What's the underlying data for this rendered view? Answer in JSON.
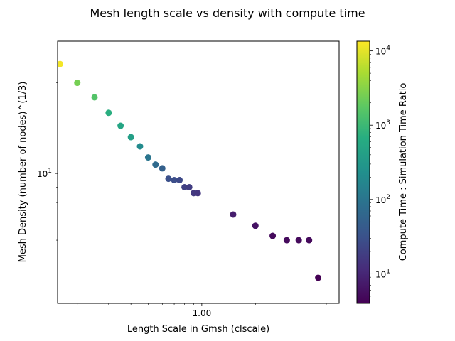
{
  "chart_data": {
    "type": "scatter",
    "title": "Mesh length scale vs density with compute time",
    "xlabel": "Length Scale in Gmsh (clscale)",
    "ylabel": "Mesh Density (number of nodes)^(1/3)",
    "x_scale": "log",
    "y_scale": "log",
    "xlim": [
      0.155,
      5.9
    ],
    "ylim": [
      3.7,
      27.5
    ],
    "x_ticks": [
      {
        "value": 1.0,
        "label": "1.00"
      }
    ],
    "y_ticks": [
      {
        "value": 10,
        "base": "10",
        "exp": "1"
      }
    ],
    "grid": false,
    "colorbar": {
      "label": "Compute Time : Simulation Time Ratio",
      "scale": "log",
      "colormap": "viridis",
      "range": [
        4,
        13500
      ],
      "ticks": [
        {
          "value": 10,
          "base": "10",
          "exp": "1"
        },
        {
          "value": 100,
          "base": "10",
          "exp": "2"
        },
        {
          "value": 1000,
          "base": "10",
          "exp": "3"
        },
        {
          "value": 10000,
          "base": "10",
          "exp": "4"
        }
      ]
    },
    "series": [
      {
        "points": [
          {
            "x": 0.16,
            "y": 23.1,
            "c": 12000
          },
          {
            "x": 0.2,
            "y": 20.0,
            "c": 2500
          },
          {
            "x": 0.25,
            "y": 17.9,
            "c": 1500
          },
          {
            "x": 0.3,
            "y": 15.9,
            "c": 700
          },
          {
            "x": 0.35,
            "y": 14.4,
            "c": 500
          },
          {
            "x": 0.4,
            "y": 13.2,
            "c": 400
          },
          {
            "x": 0.45,
            "y": 12.3,
            "c": 200
          },
          {
            "x": 0.5,
            "y": 11.3,
            "c": 100
          },
          {
            "x": 0.55,
            "y": 10.7,
            "c": 70
          },
          {
            "x": 0.6,
            "y": 10.4,
            "c": 50
          },
          {
            "x": 0.65,
            "y": 9.6,
            "c": 30
          },
          {
            "x": 0.7,
            "y": 9.5,
            "c": 28
          },
          {
            "x": 0.75,
            "y": 9.5,
            "c": 25
          },
          {
            "x": 0.8,
            "y": 9.0,
            "c": 20
          },
          {
            "x": 0.85,
            "y": 9.0,
            "c": 18
          },
          {
            "x": 0.9,
            "y": 8.6,
            "c": 16
          },
          {
            "x": 0.95,
            "y": 8.6,
            "c": 15
          },
          {
            "x": 1.5,
            "y": 7.3,
            "c": 8
          },
          {
            "x": 2.0,
            "y": 6.7,
            "c": 6
          },
          {
            "x": 2.5,
            "y": 6.2,
            "c": 5
          },
          {
            "x": 3.0,
            "y": 6.0,
            "c": 5
          },
          {
            "x": 3.5,
            "y": 6.0,
            "c": 5
          },
          {
            "x": 4.0,
            "y": 6.0,
            "c": 5
          },
          {
            "x": 4.5,
            "y": 4.5,
            "c": 4
          }
        ]
      }
    ]
  }
}
